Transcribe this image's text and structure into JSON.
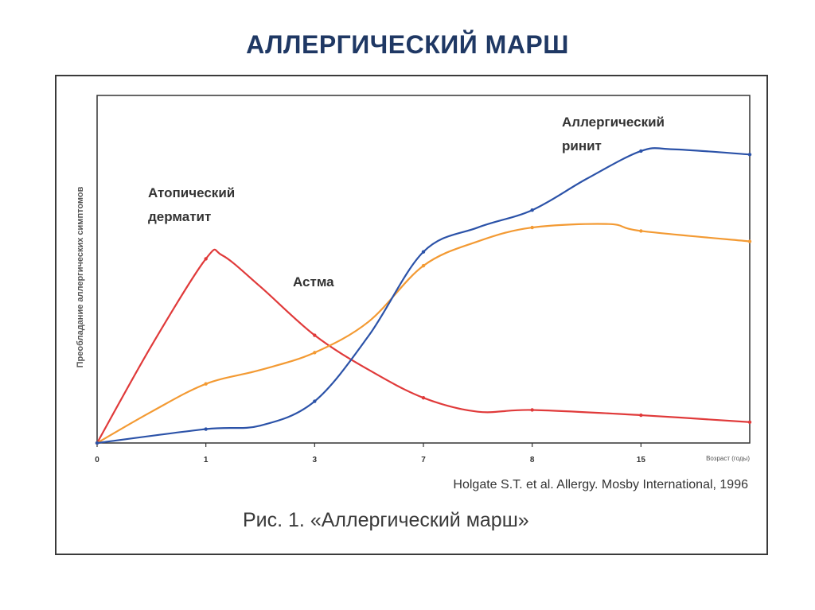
{
  "slide": {
    "title": "АЛЛЕРГИЧЕСКИЙ МАРШ",
    "caption": "Рис. 1. «Аллергический марш»"
  },
  "chart_data": {
    "type": "line",
    "title": "",
    "xlabel": "Возраст (годы)",
    "ylabel": "Преобладание аллергических симптомов",
    "categories": [
      "0",
      "1",
      "3",
      "7",
      "8",
      "15"
    ],
    "xlim": [
      0,
      6
    ],
    "ylim": [
      0,
      100
    ],
    "grid": false,
    "source": "Holgate S.T. et al. Allergy. Mosby International, 1996",
    "series": [
      {
        "name": "Атопический дерматит",
        "color": "#e03a3a",
        "points": [
          [
            0,
            0
          ],
          [
            0.5,
            28
          ],
          [
            1,
            53
          ],
          [
            1.15,
            54
          ],
          [
            1.5,
            45
          ],
          [
            2,
            31
          ],
          [
            2.5,
            21
          ],
          [
            3,
            13
          ],
          [
            3.5,
            9
          ],
          [
            4,
            9.5
          ],
          [
            5,
            8
          ],
          [
            6,
            6
          ]
        ]
      },
      {
        "name": "Астма",
        "color": "#f39a33",
        "points": [
          [
            0,
            0
          ],
          [
            0.5,
            9
          ],
          [
            1,
            17
          ],
          [
            1.5,
            21
          ],
          [
            2,
            26
          ],
          [
            2.5,
            35
          ],
          [
            3,
            51
          ],
          [
            3.5,
            58
          ],
          [
            4,
            62
          ],
          [
            4.7,
            63
          ],
          [
            5,
            61
          ],
          [
            6,
            58
          ]
        ]
      },
      {
        "name": "Аллергический ринит",
        "color": "#2b52a8",
        "points": [
          [
            0,
            0
          ],
          [
            1,
            4
          ],
          [
            1.5,
            5
          ],
          [
            2,
            12
          ],
          [
            2.5,
            31
          ],
          [
            3,
            55
          ],
          [
            3.5,
            62
          ],
          [
            4,
            67
          ],
          [
            4.5,
            76
          ],
          [
            5,
            84
          ],
          [
            5.3,
            84.5
          ],
          [
            6,
            83
          ]
        ]
      }
    ],
    "annotations": [
      {
        "series": 0,
        "lines": [
          "Атопический",
          "дерматит"
        ]
      },
      {
        "series": 1,
        "lines": [
          "Астма"
        ]
      },
      {
        "series": 2,
        "lines": [
          "Аллергический",
          "ринит"
        ]
      }
    ]
  }
}
